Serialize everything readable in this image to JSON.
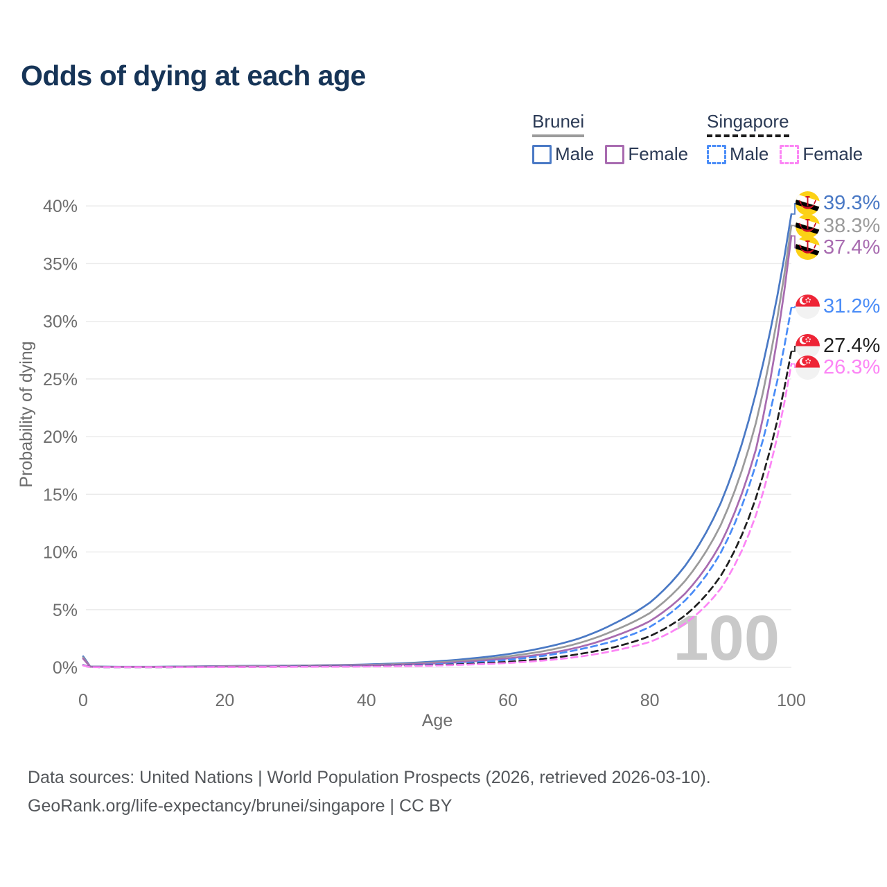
{
  "title": "Odds of dying at each age",
  "legend": {
    "groups": [
      {
        "country": "Brunei",
        "line_style": "solid",
        "underline_color": "#9b9b9b",
        "items": [
          {
            "label": "Male",
            "color": "#4a79c5"
          },
          {
            "label": "Female",
            "color": "#a86bb0"
          }
        ]
      },
      {
        "country": "Singapore",
        "line_style": "dashed",
        "underline_color": "#1c1c1c",
        "items": [
          {
            "label": "Male",
            "color": "#4a8cf7"
          },
          {
            "label": "Female",
            "color": "#fc85f5"
          }
        ]
      }
    ]
  },
  "chart_data": {
    "type": "line",
    "title": "Odds of dying at each age",
    "xlabel": "Age",
    "ylabel": "Probability of dying",
    "xlim": [
      0,
      100
    ],
    "ylim": [
      0,
      40
    ],
    "grid": "horizontal",
    "age_annotation": "100",
    "x_ticks": [
      {
        "v": 0,
        "label": "0"
      },
      {
        "v": 20,
        "label": "20"
      },
      {
        "v": 40,
        "label": "40"
      },
      {
        "v": 60,
        "label": "60"
      },
      {
        "v": 80,
        "label": "80"
      },
      {
        "v": 100,
        "label": "100"
      }
    ],
    "y_ticks": [
      {
        "v": 0,
        "label": "0%"
      },
      {
        "v": 5,
        "label": "5%"
      },
      {
        "v": 10,
        "label": "10%"
      },
      {
        "v": 15,
        "label": "15%"
      },
      {
        "v": 20,
        "label": "20%"
      },
      {
        "v": 25,
        "label": "25%"
      },
      {
        "v": 30,
        "label": "30%"
      },
      {
        "v": 35,
        "label": "35%"
      },
      {
        "v": 40,
        "label": "40%"
      }
    ],
    "ages": [
      0,
      1,
      5,
      10,
      15,
      20,
      25,
      30,
      35,
      40,
      45,
      50,
      55,
      60,
      65,
      70,
      75,
      80,
      85,
      90,
      95,
      100
    ],
    "unit": "percent",
    "series": [
      {
        "id": "brunei-male",
        "name": "Brunei Male",
        "country": "Brunei",
        "sex": "Male",
        "color": "#4a79c5",
        "dash": "solid",
        "flag": "brunei",
        "end_label": "39.3%",
        "end_value": 39.3,
        "values": [
          0.95,
          0.07,
          0.05,
          0.05,
          0.08,
          0.11,
          0.13,
          0.15,
          0.19,
          0.25,
          0.35,
          0.52,
          0.78,
          1.15,
          1.7,
          2.5,
          3.8,
          5.6,
          8.8,
          14.2,
          23.8,
          39.3
        ]
      },
      {
        "id": "brunei-all",
        "name": "Brunei",
        "country": "Brunei",
        "sex": "All",
        "color": "#9b9b9b",
        "dash": "solid",
        "flag": "brunei",
        "end_label": "38.3%",
        "end_value": 38.3,
        "values": [
          0.85,
          0.06,
          0.04,
          0.04,
          0.06,
          0.09,
          0.11,
          0.13,
          0.16,
          0.21,
          0.29,
          0.43,
          0.64,
          0.95,
          1.4,
          2.1,
          3.2,
          4.7,
          7.5,
          12.3,
          21.2,
          38.3
        ]
      },
      {
        "id": "brunei-female",
        "name": "Brunei Female",
        "country": "Brunei",
        "sex": "Female",
        "color": "#a86bb0",
        "dash": "solid",
        "flag": "brunei",
        "end_label": "37.4%",
        "end_value": 37.4,
        "values": [
          0.75,
          0.05,
          0.04,
          0.03,
          0.05,
          0.07,
          0.08,
          0.1,
          0.13,
          0.17,
          0.24,
          0.35,
          0.52,
          0.78,
          1.15,
          1.75,
          2.7,
          4.0,
          6.4,
          10.7,
          18.9,
          37.4
        ]
      },
      {
        "id": "singapore-male",
        "name": "Singapore Male",
        "country": "Singapore",
        "sex": "Male",
        "color": "#4a8cf7",
        "dash": "dashed",
        "flag": "singapore",
        "end_label": "31.2%",
        "end_value": 31.2,
        "values": [
          0.2,
          0.02,
          0.01,
          0.01,
          0.02,
          0.04,
          0.05,
          0.06,
          0.08,
          0.11,
          0.17,
          0.27,
          0.42,
          0.65,
          1.0,
          1.55,
          2.3,
          3.5,
          5.8,
          9.9,
          17.6,
          31.2
        ]
      },
      {
        "id": "singapore-all",
        "name": "Singapore",
        "country": "Singapore",
        "sex": "All",
        "color": "#1f1f1f",
        "dash": "dashed",
        "flag": "singapore",
        "end_label": "27.4%",
        "end_value": 27.4,
        "values": [
          0.18,
          0.02,
          0.01,
          0.01,
          0.02,
          0.03,
          0.04,
          0.05,
          0.06,
          0.09,
          0.13,
          0.2,
          0.31,
          0.48,
          0.74,
          1.15,
          1.75,
          2.7,
          4.5,
          7.9,
          14.7,
          27.4
        ]
      },
      {
        "id": "singapore-female",
        "name": "Singapore Female",
        "country": "Singapore",
        "sex": "Female",
        "color": "#fc85f5",
        "dash": "dashed",
        "flag": "singapore",
        "end_label": "26.3%",
        "end_value": 26.3,
        "values": [
          0.16,
          0.015,
          0.01,
          0.01,
          0.015,
          0.025,
          0.03,
          0.04,
          0.05,
          0.07,
          0.1,
          0.16,
          0.25,
          0.38,
          0.59,
          0.92,
          1.45,
          2.2,
          3.8,
          6.8,
          13.2,
          26.3
        ]
      }
    ]
  },
  "footer": {
    "line1": "Data sources: United Nations | World Population Prospects (2026, retrieved 2026-03-10).",
    "line2": "GeoRank.org/life-expectancy/brunei/singapore | CC BY"
  },
  "colors": {
    "title": "#163457",
    "legend_text": "#2b3a55",
    "axis_text": "#6d6d6d",
    "gridline": "#eaeaea",
    "watermark": "#c9c9c9",
    "footer_text": "#54575b"
  }
}
